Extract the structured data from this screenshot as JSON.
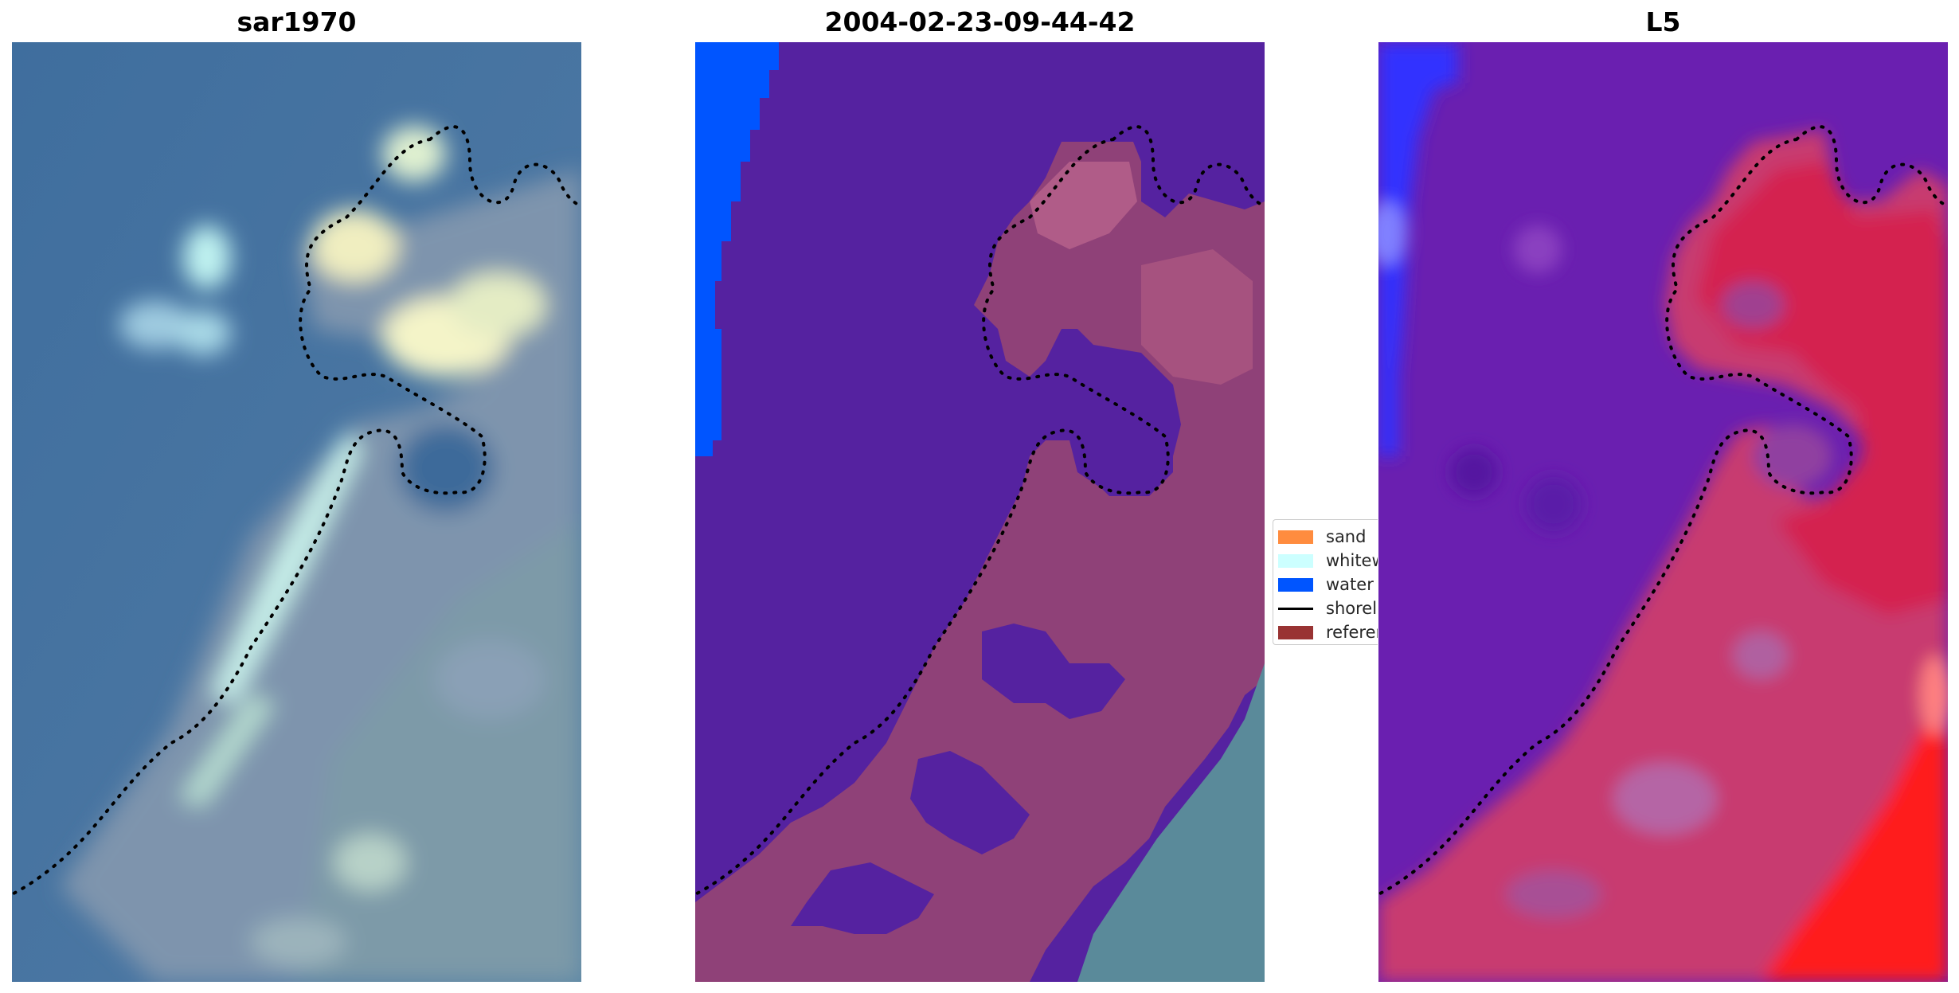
{
  "panels": [
    {
      "title": "sar1970"
    },
    {
      "title": "2004-02-23-09-44-42"
    },
    {
      "title": "L5"
    }
  ],
  "legend": {
    "items": [
      {
        "label": "sand",
        "color": "#ff8c3f"
      },
      {
        "label": "whitewater",
        "color": "#ccffff"
      },
      {
        "label": "water",
        "color": "#0055ff"
      },
      {
        "label": "shoreline",
        "color": "#000000"
      },
      {
        "label": "reference",
        "color": "#993333"
      }
    ]
  },
  "colors": {
    "rgb_water": "#4a7aa5",
    "rgb_land": "#6f8fa8",
    "class_water": "#5522a0",
    "class_land": "#8c3f78",
    "class_edge_blue": "#0055ff",
    "index_water": "#6a1fb0",
    "index_land": "#d0305a",
    "index_hot": "#ff1a1a"
  }
}
